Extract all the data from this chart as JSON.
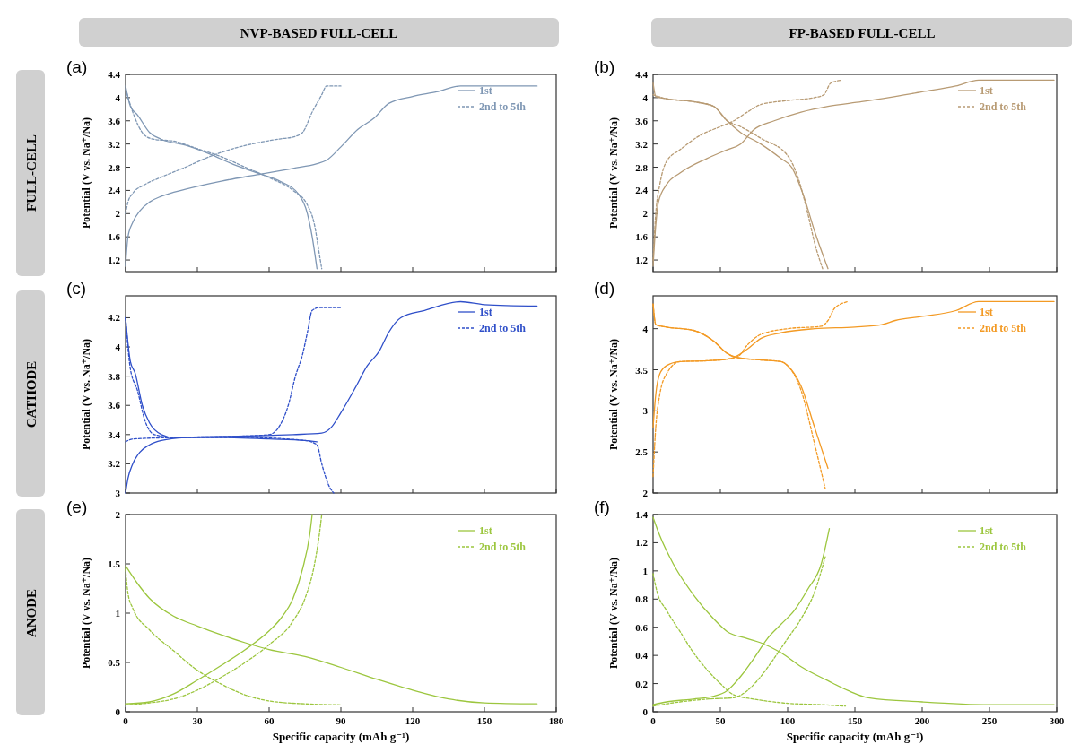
{
  "chart_data": [
    {
      "type": "line",
      "title": "(a)",
      "subtitle": "NVP-BASED FULL-CELL",
      "annotations": [
        "FULL-CELL"
      ],
      "ylabel": "Potential (V vs. Na⁺/Na)",
      "xlim": [
        0,
        180
      ],
      "xticks": [
        0,
        30,
        60,
        90,
        120,
        150,
        180
      ],
      "ylim": [
        1,
        4.4
      ],
      "yticks": [
        1.2,
        1.6,
        2,
        2.4,
        2.8,
        3.2,
        3.6,
        4,
        4.4
      ],
      "tick_labels": "y",
      "legend": "top right",
      "series": [
        {
          "name": "1st",
          "color": "#7f97b4",
          "line_style": "solid",
          "x": [
            0,
            1,
            3,
            6,
            10,
            15,
            25,
            40,
            55,
            70,
            80,
            84,
            90,
            97,
            104,
            110,
            120,
            130,
            140,
            172
          ],
          "values": [
            1.1,
            1.6,
            1.85,
            2.05,
            2.2,
            2.3,
            2.42,
            2.56,
            2.67,
            2.78,
            2.86,
            2.92,
            3.15,
            3.45,
            3.65,
            3.9,
            4.02,
            4.1,
            4.2,
            4.2
          ]
        },
        {
          "color": "#7f97b4",
          "line_style": "solid",
          "x": [
            0,
            2,
            5,
            10,
            15,
            25,
            35,
            45,
            55,
            65,
            72,
            76,
            78,
            80
          ],
          "values": [
            4.2,
            3.85,
            3.7,
            3.4,
            3.28,
            3.18,
            3.03,
            2.85,
            2.7,
            2.55,
            2.35,
            2,
            1.6,
            1.05
          ]
        },
        {
          "name": "2nd to 5th",
          "color": "#7f97b4",
          "line_style": "dashed",
          "x": [
            0,
            1,
            3,
            8,
            15,
            25,
            35,
            45,
            55,
            65,
            70,
            74,
            78,
            82,
            84,
            90
          ],
          "values": [
            2,
            2.2,
            2.35,
            2.5,
            2.63,
            2.8,
            2.98,
            3.12,
            3.22,
            3.29,
            3.32,
            3.4,
            3.75,
            4.05,
            4.2,
            4.2
          ]
        },
        {
          "color": "#7f97b4",
          "line_style": "dashed",
          "x": [
            0,
            3,
            8,
            12,
            20,
            30,
            40,
            50,
            60,
            70,
            76,
            79,
            81,
            82
          ],
          "values": [
            4.15,
            3.75,
            3.35,
            3.28,
            3.25,
            3.12,
            2.98,
            2.8,
            2.62,
            2.4,
            2.15,
            1.8,
            1.3,
            1.05
          ]
        }
      ]
    },
    {
      "type": "line",
      "title": "(b)",
      "subtitle": "FP-BASED FULL-CELL",
      "ylabel": "Potential (V vs. Na⁺/Na)",
      "xlim": [
        0,
        300
      ],
      "xticks": [
        0,
        50,
        100,
        150,
        200,
        250,
        300
      ],
      "ylim": [
        1,
        4.4
      ],
      "yticks": [
        1.2,
        1.6,
        2,
        2.4,
        2.8,
        3.2,
        3.6,
        4,
        4.4
      ],
      "tick_labels": "y",
      "legend": "top right",
      "series": [
        {
          "name": "1st",
          "color": "#b89b74",
          "line_style": "solid",
          "x": [
            0,
            2,
            4,
            10,
            20,
            40,
            55,
            65,
            75,
            90,
            110,
            130,
            155,
            175,
            200,
            225,
            242,
            298
          ],
          "values": [
            1.1,
            1.8,
            2.2,
            2.5,
            2.7,
            2.95,
            3.1,
            3.2,
            3.45,
            3.6,
            3.75,
            3.85,
            3.93,
            4,
            4.1,
            4.2,
            4.3,
            4.3
          ]
        },
        {
          "color": "#b89b74",
          "line_style": "solid",
          "x": [
            0,
            2,
            10,
            30,
            45,
            55,
            65,
            80,
            95,
            103,
            112,
            120,
            130
          ],
          "values": [
            4.25,
            4.02,
            3.98,
            3.93,
            3.85,
            3.6,
            3.4,
            3.2,
            2.95,
            2.8,
            2.3,
            1.7,
            1.05
          ]
        },
        {
          "name": "2nd to 5th",
          "color": "#b89b74",
          "line_style": "dashed",
          "x": [
            0,
            2,
            5,
            10,
            20,
            35,
            50,
            60,
            70,
            80,
            100,
            120,
            127,
            132,
            140
          ],
          "values": [
            1.2,
            2,
            2.5,
            2.9,
            3.1,
            3.35,
            3.5,
            3.6,
            3.75,
            3.88,
            3.95,
            4,
            4.05,
            4.25,
            4.3
          ]
        },
        {
          "color": "#b89b74",
          "line_style": "dashed",
          "x": [
            0,
            10,
            30,
            45,
            55,
            65,
            80,
            100,
            108,
            115,
            120,
            126
          ],
          "values": [
            4.05,
            3.98,
            3.93,
            3.85,
            3.6,
            3.5,
            3.3,
            3,
            2.6,
            2,
            1.5,
            1.05
          ]
        }
      ]
    },
    {
      "type": "line",
      "title": "(c)",
      "annotations": [
        "CATHODE"
      ],
      "ylabel": "Potential (V vs. Na⁺/Na)",
      "xlim": [
        0,
        180
      ],
      "xticks": [
        0,
        30,
        60,
        90,
        120,
        150,
        180
      ],
      "ylim": [
        3,
        4.35
      ],
      "yticks": [
        3,
        3.2,
        3.4,
        3.6,
        3.8,
        4,
        4.2
      ],
      "tick_labels": "y",
      "legend": "top right",
      "series": [
        {
          "name": "1st",
          "color": "#2f4fc9",
          "line_style": "solid",
          "x": [
            0,
            1,
            3,
            6,
            10,
            15,
            25,
            50,
            70,
            82,
            86,
            90,
            96,
            101,
            106,
            110,
            115,
            125,
            140,
            150,
            172
          ],
          "values": [
            3,
            3.1,
            3.2,
            3.28,
            3.33,
            3.36,
            3.38,
            3.39,
            3.4,
            3.41,
            3.45,
            3.55,
            3.72,
            3.87,
            3.97,
            4.1,
            4.2,
            4.25,
            4.31,
            4.29,
            4.28
          ]
        },
        {
          "color": "#2f4fc9",
          "line_style": "solid",
          "x": [
            0,
            2,
            4,
            7,
            10,
            15,
            20,
            40,
            60,
            75,
            80
          ],
          "values": [
            4.2,
            3.9,
            3.82,
            3.6,
            3.48,
            3.4,
            3.38,
            3.38,
            3.37,
            3.36,
            3.35
          ]
        },
        {
          "name": "2nd to 5th",
          "color": "#2f4fc9",
          "line_style": "dashed",
          "x": [
            0,
            3,
            20,
            50,
            60,
            64,
            68,
            71,
            74,
            76,
            78,
            81,
            90
          ],
          "values": [
            3.35,
            3.37,
            3.38,
            3.39,
            3.4,
            3.45,
            3.6,
            3.8,
            3.95,
            4.1,
            4.25,
            4.27,
            4.27
          ]
        },
        {
          "color": "#2f4fc9",
          "line_style": "dashed",
          "x": [
            0,
            2,
            5,
            8,
            12,
            20,
            50,
            75,
            80,
            82,
            85,
            87
          ],
          "values": [
            4.2,
            3.85,
            3.7,
            3.5,
            3.4,
            3.38,
            3.38,
            3.36,
            3.33,
            3.2,
            3.05,
            3
          ]
        }
      ]
    },
    {
      "type": "line",
      "title": "(d)",
      "ylabel": "Potential (V vs. Na⁺/Na)",
      "xlim": [
        0,
        300
      ],
      "xticks": [
        0,
        50,
        100,
        150,
        200,
        250,
        300
      ],
      "ylim": [
        2,
        4.4
      ],
      "yticks": [
        2,
        2.5,
        3,
        3.5,
        4
      ],
      "tick_labels": "y",
      "legend": "top right",
      "series": [
        {
          "name": "1st",
          "color": "#f39a24",
          "line_style": "solid",
          "x": [
            0,
            2,
            5,
            10,
            20,
            40,
            55,
            60,
            70,
            80,
            95,
            120,
            150,
            170,
            180,
            200,
            225,
            242,
            298
          ],
          "values": [
            2.8,
            3.2,
            3.45,
            3.55,
            3.6,
            3.61,
            3.63,
            3.65,
            3.75,
            3.88,
            3.95,
            4,
            4.02,
            4.05,
            4.1,
            4.15,
            4.22,
            4.33,
            4.33
          ]
        },
        {
          "color": "#f39a24",
          "line_style": "solid",
          "x": [
            0,
            2,
            10,
            30,
            45,
            55,
            62,
            80,
            95,
            100,
            110,
            120,
            130
          ],
          "values": [
            4.3,
            4.05,
            4.02,
            3.98,
            3.85,
            3.7,
            3.65,
            3.62,
            3.6,
            3.55,
            3.3,
            2.8,
            2.3
          ]
        },
        {
          "name": "2nd to 5th",
          "color": "#f39a24",
          "line_style": "dashed",
          "x": [
            0,
            2,
            5,
            10,
            20,
            40,
            55,
            63,
            70,
            80,
            100,
            125,
            130,
            135,
            145
          ],
          "values": [
            2.2,
            2.8,
            3.2,
            3.45,
            3.6,
            3.61,
            3.63,
            3.66,
            3.8,
            3.93,
            4,
            4.03,
            4.1,
            4.25,
            4.33
          ]
        },
        {
          "color": "#f39a24",
          "line_style": "dashed",
          "x": [
            0,
            2,
            10,
            30,
            45,
            55,
            62,
            80,
            95,
            100,
            110,
            120,
            128
          ],
          "values": [
            4.3,
            4.05,
            4.02,
            3.98,
            3.85,
            3.7,
            3.65,
            3.62,
            3.6,
            3.55,
            3.25,
            2.6,
            2.05
          ]
        }
      ]
    },
    {
      "type": "line",
      "title": "(e)",
      "annotations": [
        "ANODE"
      ],
      "xlabel": "Specific capacity (mAh g⁻¹)",
      "ylabel": "Potential (V vs. Na⁺/Na)",
      "xlim": [
        0,
        180
      ],
      "xticks": [
        0,
        30,
        60,
        90,
        120,
        150,
        180
      ],
      "ylim": [
        0,
        2
      ],
      "yticks": [
        0,
        0.5,
        1,
        1.5,
        2
      ],
      "legend": "top right",
      "series": [
        {
          "name": "1st",
          "color": "#9cc63e",
          "line_style": "solid",
          "x": [
            0,
            5,
            10,
            20,
            30,
            40,
            50,
            60,
            75,
            90,
            105,
            120,
            135,
            150,
            172
          ],
          "values": [
            1.48,
            1.3,
            1.15,
            0.97,
            0.87,
            0.78,
            0.7,
            0.63,
            0.56,
            0.45,
            0.33,
            0.22,
            0.13,
            0.09,
            0.08
          ]
        },
        {
          "color": "#9cc63e",
          "line_style": "solid",
          "x": [
            0,
            10,
            20,
            30,
            40,
            50,
            60,
            65,
            70,
            74,
            77,
            78
          ],
          "values": [
            0.08,
            0.1,
            0.18,
            0.32,
            0.47,
            0.63,
            0.82,
            0.95,
            1.15,
            1.45,
            1.8,
            2
          ]
        },
        {
          "name": "2nd to 5th",
          "color": "#9cc63e",
          "line_style": "dashed",
          "x": [
            0,
            1,
            3,
            10,
            20,
            30,
            40,
            50,
            60,
            75,
            90
          ],
          "values": [
            1.45,
            1.2,
            1.05,
            0.83,
            0.62,
            0.42,
            0.28,
            0.17,
            0.11,
            0.08,
            0.07
          ]
        },
        {
          "color": "#9cc63e",
          "line_style": "dashed",
          "x": [
            0,
            10,
            20,
            30,
            40,
            50,
            60,
            70,
            75,
            79,
            81,
            82
          ],
          "values": [
            0.07,
            0.09,
            0.13,
            0.22,
            0.35,
            0.5,
            0.68,
            0.92,
            1.15,
            1.5,
            1.8,
            2
          ]
        }
      ]
    },
    {
      "type": "line",
      "title": "(f)",
      "xlabel": "Specific capacity (mAh g⁻¹)",
      "ylabel": "Potential (V vs. Na⁺/Na)",
      "xlim": [
        0,
        300
      ],
      "xticks": [
        0,
        50,
        100,
        150,
        200,
        250,
        300
      ],
      "ylim": [
        0,
        1.4
      ],
      "yticks": [
        0,
        0.2,
        0.4,
        0.6,
        0.8,
        1,
        1.2,
        1.4
      ],
      "legend": "top right",
      "series": [
        {
          "name": "1st",
          "color": "#9cc63e",
          "line_style": "solid",
          "x": [
            0,
            5,
            15,
            30,
            45,
            55,
            70,
            80,
            95,
            110,
            130,
            145,
            160,
            200,
            250,
            298
          ],
          "values": [
            1.38,
            1.25,
            1.05,
            0.83,
            0.66,
            0.57,
            0.52,
            0.49,
            0.42,
            0.32,
            0.22,
            0.15,
            0.1,
            0.07,
            0.05,
            0.05
          ]
        },
        {
          "color": "#9cc63e",
          "line_style": "solid",
          "x": [
            0,
            10,
            30,
            45,
            55,
            65,
            75,
            85,
            95,
            105,
            115,
            125,
            131
          ],
          "values": [
            0.05,
            0.07,
            0.09,
            0.11,
            0.15,
            0.25,
            0.38,
            0.52,
            0.62,
            0.72,
            0.87,
            1.05,
            1.3
          ]
        },
        {
          "name": "2nd to 5th",
          "color": "#9cc63e",
          "line_style": "dashed",
          "x": [
            0,
            3,
            10,
            20,
            30,
            40,
            50,
            60,
            75,
            100,
            125,
            143
          ],
          "values": [
            0.98,
            0.85,
            0.72,
            0.57,
            0.42,
            0.3,
            0.2,
            0.12,
            0.09,
            0.06,
            0.05,
            0.04
          ]
        },
        {
          "color": "#9cc63e",
          "line_style": "dashed",
          "x": [
            0,
            20,
            40,
            60,
            70,
            80,
            90,
            100,
            110,
            120,
            128
          ],
          "values": [
            0.04,
            0.07,
            0.09,
            0.1,
            0.15,
            0.25,
            0.38,
            0.52,
            0.66,
            0.85,
            1.1
          ]
        }
      ]
    }
  ]
}
